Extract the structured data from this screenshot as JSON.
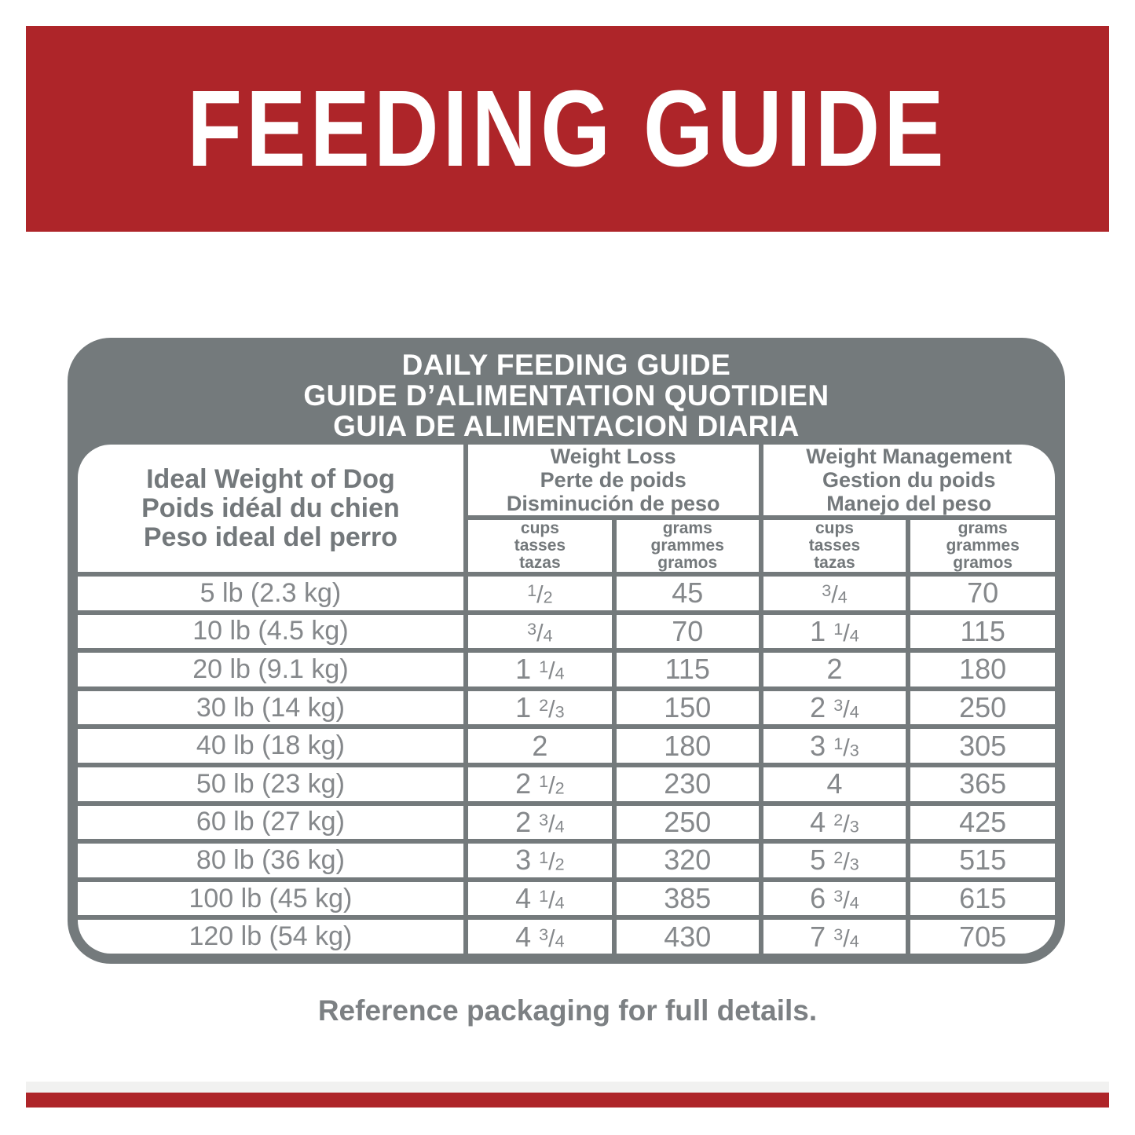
{
  "banner": {
    "title": "FEEDING GUIDE"
  },
  "table": {
    "title_lines": [
      "DAILY FEEDING GUIDE",
      "GUIDE D’ALIMENTATION QUOTIDIEN",
      "GUIA DE ALIMENTACION DIARIA"
    ],
    "weight_header_lines": [
      "Ideal Weight of Dog",
      "Poids idéal du chien",
      "Peso ideal del perro"
    ],
    "groups": [
      {
        "name_lines": [
          "Weight Loss",
          "Perte de poids",
          "Disminución de peso"
        ]
      },
      {
        "name_lines": [
          "Weight Management",
          "Gestion du poids",
          "Manejo del peso"
        ]
      }
    ],
    "subheaders": {
      "cups_lines": [
        "cups",
        "tasses",
        "tazas"
      ],
      "grams_lines": [
        "grams",
        "grammes",
        "gramos"
      ]
    },
    "rows": [
      {
        "weight": "5 lb (2.3 kg)",
        "wl_cups": "1/2",
        "wl_grams": "45",
        "wm_cups": "3/4",
        "wm_grams": "70"
      },
      {
        "weight": "10 lb (4.5 kg)",
        "wl_cups": "3/4",
        "wl_grams": "70",
        "wm_cups": "1 1/4",
        "wm_grams": "115"
      },
      {
        "weight": "20 lb (9.1 kg)",
        "wl_cups": "1 1/4",
        "wl_grams": "115",
        "wm_cups": "2",
        "wm_grams": "180"
      },
      {
        "weight": "30 lb (14 kg)",
        "wl_cups": "1 2/3",
        "wl_grams": "150",
        "wm_cups": "2 3/4",
        "wm_grams": "250"
      },
      {
        "weight": "40 lb (18 kg)",
        "wl_cups": "2",
        "wl_grams": "180",
        "wm_cups": "3 1/3",
        "wm_grams": "305"
      },
      {
        "weight": "50 lb (23 kg)",
        "wl_cups": "2 1/2",
        "wl_grams": "230",
        "wm_cups": "4",
        "wm_grams": "365"
      },
      {
        "weight": "60 lb (27 kg)",
        "wl_cups": "2 3/4",
        "wl_grams": "250",
        "wm_cups": "4 2/3",
        "wm_grams": "425"
      },
      {
        "weight": "80 lb (36 kg)",
        "wl_cups": "3 1/2",
        "wl_grams": "320",
        "wm_cups": "5 2/3",
        "wm_grams": "515"
      },
      {
        "weight": "100 lb (45 kg)",
        "wl_cups": "4 1/4",
        "wl_grams": "385",
        "wm_cups": "6 3/4",
        "wm_grams": "615"
      },
      {
        "weight": "120 lb (54 kg)",
        "wl_cups": "4 3/4",
        "wl_grams": "430",
        "wm_cups": "7 3/4",
        "wm_grams": "705"
      }
    ]
  },
  "footer": {
    "note": "Reference packaging for full details."
  },
  "colors": {
    "red": "#AE2529",
    "gray": "#747A7C",
    "data_text": "#85888B",
    "header_text": "#73787B"
  }
}
